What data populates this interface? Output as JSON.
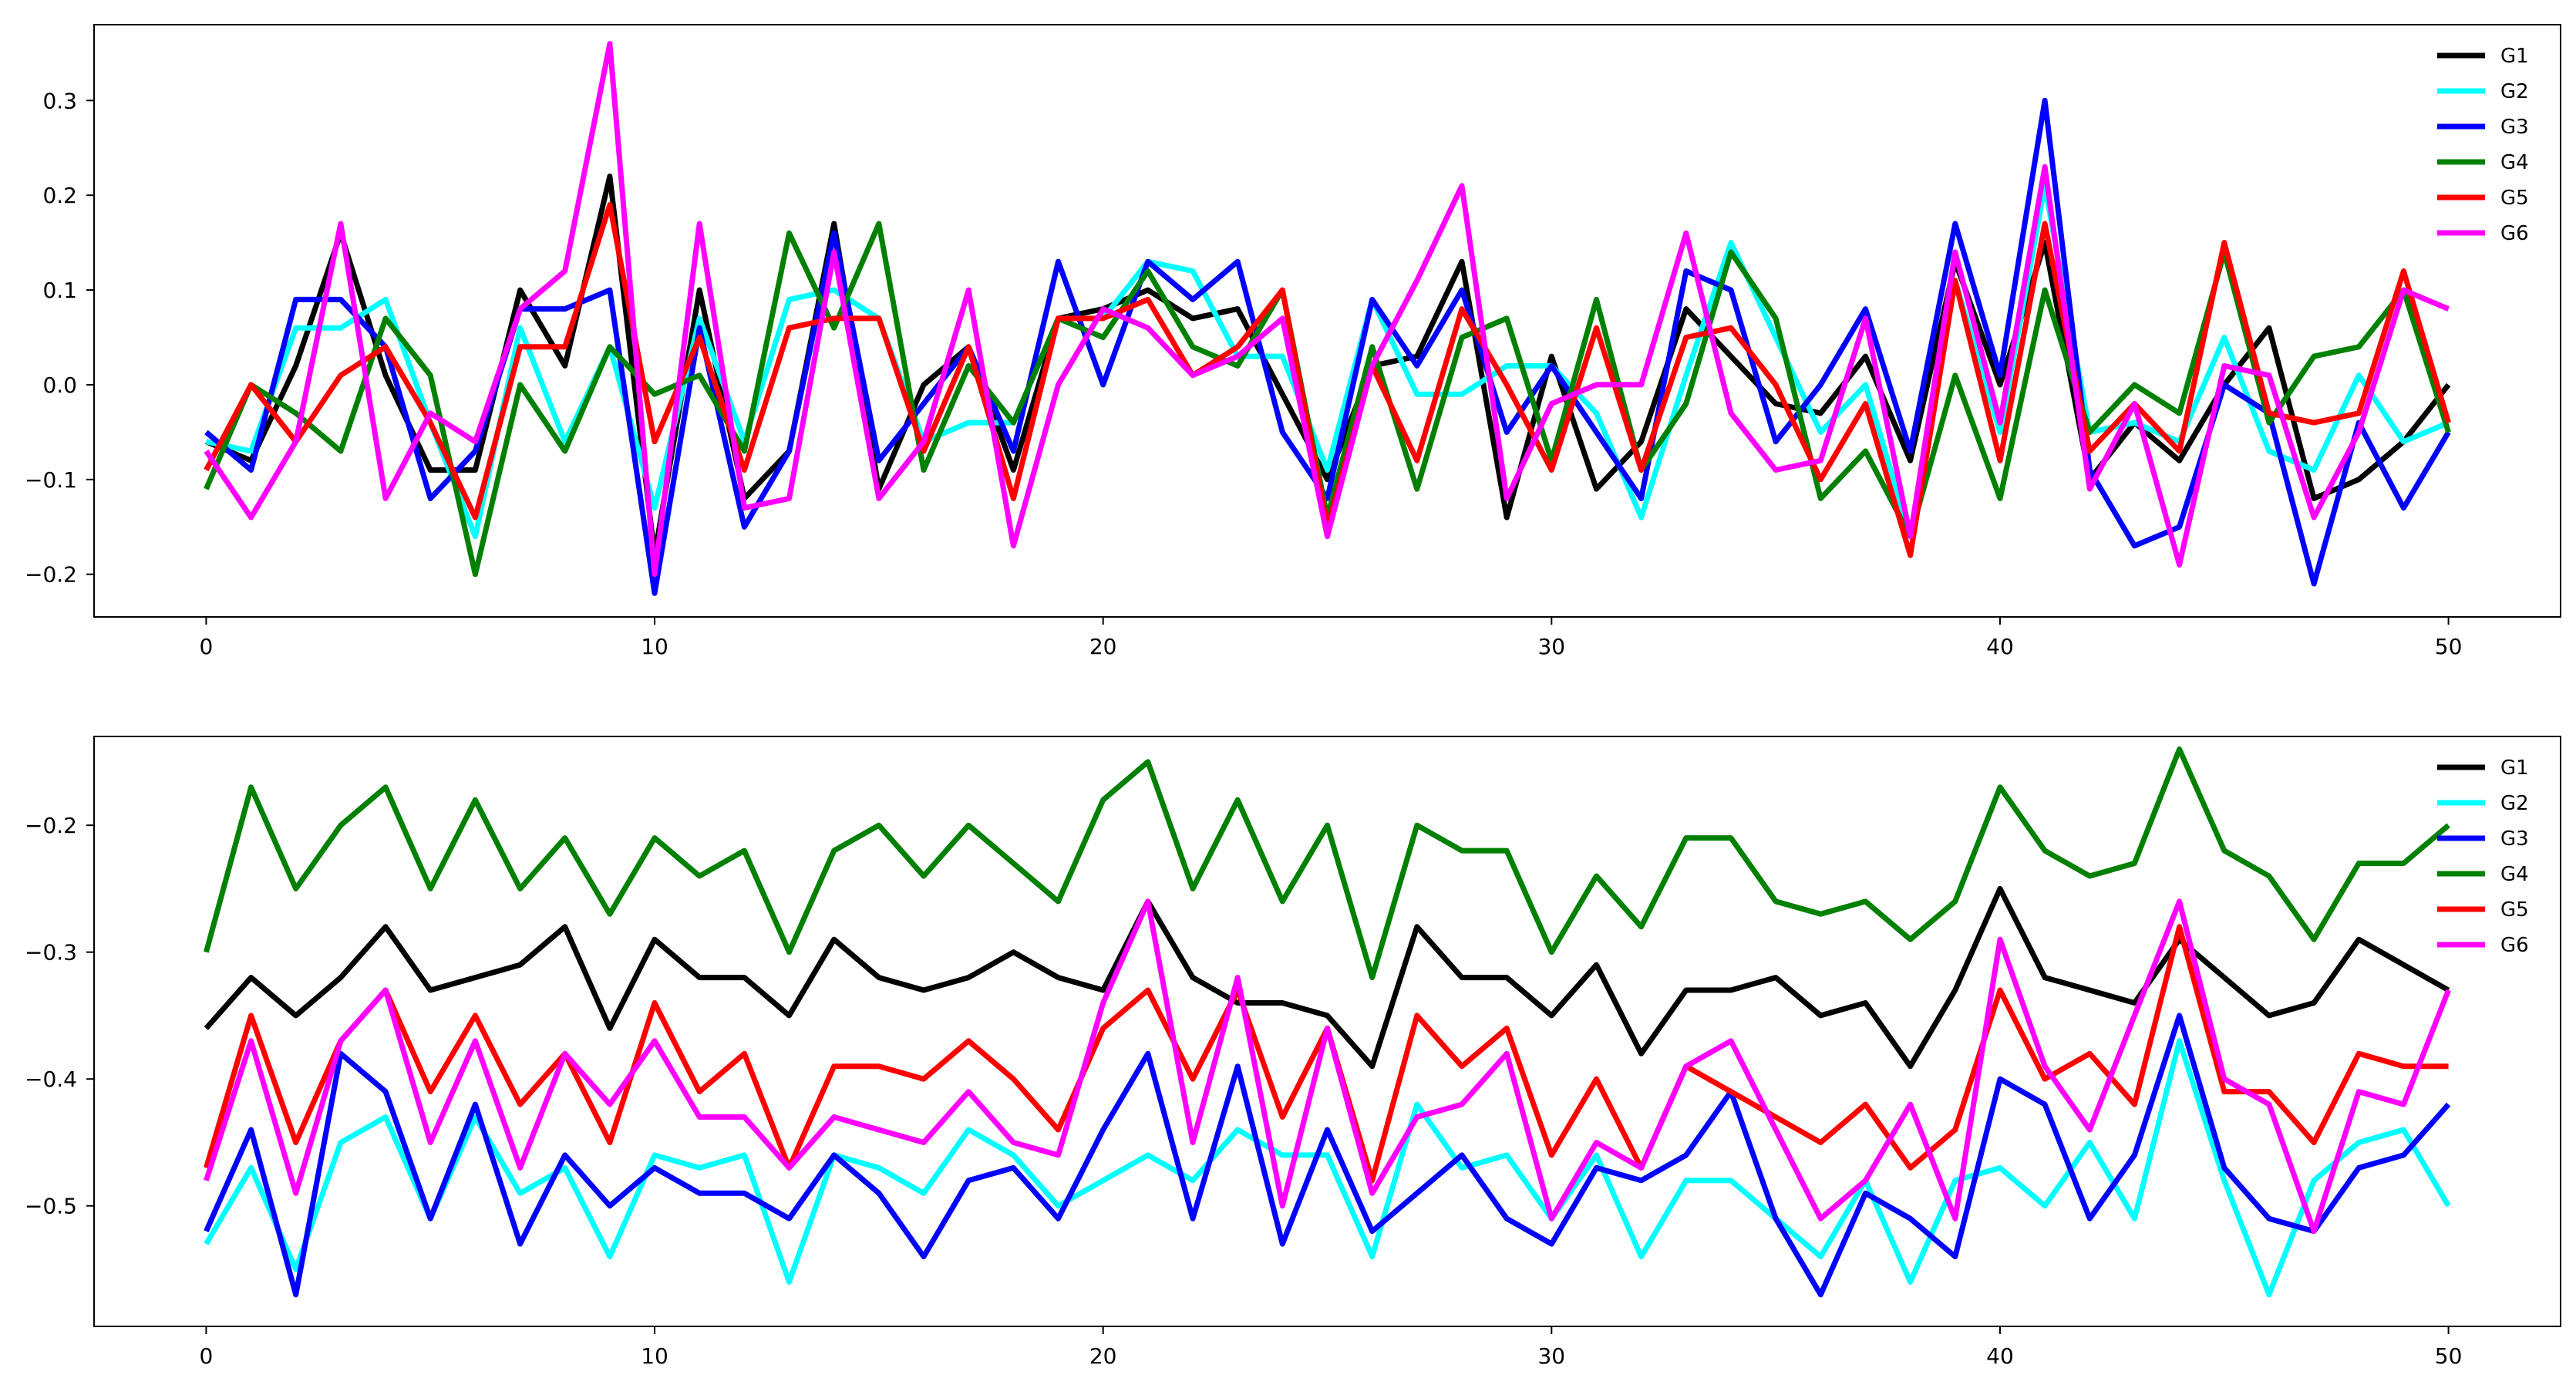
{
  "chart_data": [
    {
      "type": "line",
      "title": "",
      "xlabel": "",
      "ylabel": "",
      "xlim": [
        -2.5,
        52.5
      ],
      "ylim": [
        -0.245,
        0.38
      ],
      "xticks": [
        0,
        10,
        20,
        30,
        40,
        50
      ],
      "yticks": [
        -0.2,
        -0.1,
        0.0,
        0.1,
        0.2,
        0.3
      ],
      "ytick_labels": [
        "−0.2",
        "−0.1",
        "0.0",
        "0.1",
        "0.2",
        "0.3"
      ],
      "grid": false,
      "legend": "top-right",
      "x": [
        0,
        1,
        2,
        3,
        4,
        5,
        6,
        7,
        8,
        9,
        10,
        11,
        12,
        13,
        14,
        15,
        16,
        17,
        18,
        19,
        20,
        21,
        22,
        23,
        24,
        25,
        26,
        27,
        28,
        29,
        30,
        31,
        32,
        33,
        34,
        35,
        36,
        37,
        38,
        39,
        40,
        41,
        42,
        43,
        44,
        45,
        46,
        47,
        48,
        49,
        50
      ],
      "series": [
        {
          "name": "G1",
          "color": "#000000",
          "values": [
            -0.06,
            -0.08,
            0.02,
            0.16,
            0.01,
            -0.09,
            -0.09,
            0.1,
            0.02,
            0.22,
            -0.18,
            0.1,
            -0.12,
            -0.07,
            0.17,
            -0.11,
            0.0,
            0.04,
            -0.09,
            0.07,
            0.08,
            0.1,
            0.07,
            0.08,
            -0.01,
            -0.1,
            0.02,
            0.03,
            0.13,
            -0.14,
            0.03,
            -0.11,
            -0.06,
            0.08,
            0.03,
            -0.02,
            -0.03,
            0.03,
            -0.08,
            0.13,
            0.0,
            0.15,
            -0.1,
            -0.04,
            -0.08,
            0.0,
            0.06,
            -0.12,
            -0.1,
            -0.06,
            0.0
          ]
        },
        {
          "name": "G2",
          "color": "#00ffff",
          "values": [
            -0.06,
            -0.07,
            0.06,
            0.06,
            0.09,
            -0.04,
            -0.16,
            0.06,
            -0.06,
            0.04,
            -0.13,
            0.07,
            -0.06,
            0.09,
            0.1,
            0.07,
            -0.06,
            -0.04,
            -0.04,
            0.07,
            0.07,
            0.13,
            0.12,
            0.03,
            0.03,
            -0.09,
            0.09,
            -0.01,
            -0.01,
            0.02,
            0.02,
            -0.03,
            -0.14,
            0.01,
            0.15,
            0.05,
            -0.05,
            0.0,
            -0.16,
            0.11,
            -0.05,
            0.21,
            -0.05,
            -0.04,
            -0.06,
            0.05,
            -0.07,
            -0.09,
            0.01,
            -0.06,
            -0.04
          ]
        },
        {
          "name": "G3",
          "color": "#0000ff",
          "values": [
            -0.05,
            -0.09,
            0.09,
            0.09,
            0.04,
            -0.12,
            -0.07,
            0.08,
            0.08,
            0.1,
            -0.22,
            0.06,
            -0.15,
            -0.07,
            0.16,
            -0.08,
            -0.02,
            0.04,
            -0.07,
            0.13,
            0.0,
            0.13,
            0.09,
            0.13,
            -0.05,
            -0.12,
            0.09,
            0.02,
            0.1,
            -0.05,
            0.02,
            -0.05,
            -0.12,
            0.12,
            0.1,
            -0.06,
            0.0,
            0.08,
            -0.07,
            0.17,
            0.01,
            0.3,
            -0.09,
            -0.17,
            -0.15,
            0.0,
            -0.03,
            -0.21,
            -0.04,
            -0.13,
            -0.05
          ]
        },
        {
          "name": "G4",
          "color": "#008000",
          "values": [
            -0.11,
            0.0,
            -0.03,
            -0.07,
            0.07,
            0.01,
            -0.2,
            0.0,
            -0.07,
            0.04,
            -0.01,
            0.01,
            -0.07,
            0.16,
            0.06,
            0.17,
            -0.09,
            0.02,
            -0.04,
            0.07,
            0.05,
            0.12,
            0.04,
            0.02,
            0.1,
            -0.14,
            0.04,
            -0.11,
            0.05,
            0.07,
            -0.08,
            0.09,
            -0.09,
            -0.02,
            0.14,
            0.07,
            -0.12,
            -0.07,
            -0.16,
            0.01,
            -0.12,
            0.1,
            -0.05,
            0.0,
            -0.03,
            0.14,
            -0.04,
            0.03,
            0.04,
            0.1,
            -0.05
          ]
        },
        {
          "name": "G5",
          "color": "#ff0000",
          "values": [
            -0.09,
            0.0,
            -0.06,
            0.01,
            0.04,
            -0.04,
            -0.14,
            0.04,
            0.04,
            0.19,
            -0.06,
            0.05,
            -0.09,
            0.06,
            0.07,
            0.07,
            -0.07,
            0.04,
            -0.12,
            0.07,
            0.07,
            0.09,
            0.01,
            0.04,
            0.1,
            -0.15,
            0.02,
            -0.08,
            0.08,
            0.0,
            -0.09,
            0.06,
            -0.09,
            0.05,
            0.06,
            0.0,
            -0.1,
            -0.02,
            -0.18,
            0.11,
            -0.08,
            0.17,
            -0.07,
            -0.02,
            -0.07,
            0.15,
            -0.03,
            -0.04,
            -0.03,
            0.12,
            -0.04
          ]
        },
        {
          "name": "G6",
          "color": "#ff00ff",
          "values": [
            -0.07,
            -0.14,
            -0.06,
            0.17,
            -0.12,
            -0.03,
            -0.06,
            0.08,
            0.12,
            0.36,
            -0.2,
            0.17,
            -0.13,
            -0.12,
            0.14,
            -0.12,
            -0.06,
            0.1,
            -0.17,
            0.0,
            0.08,
            0.06,
            0.01,
            0.03,
            0.07,
            -0.16,
            0.02,
            0.11,
            0.21,
            -0.12,
            -0.02,
            0.0,
            0.0,
            0.16,
            -0.03,
            -0.09,
            -0.08,
            0.07,
            -0.16,
            0.14,
            -0.04,
            0.23,
            -0.11,
            -0.02,
            -0.19,
            0.02,
            0.01,
            -0.14,
            -0.05,
            0.1,
            0.08
          ]
        }
      ]
    },
    {
      "type": "line",
      "title": "",
      "xlabel": "",
      "ylabel": "",
      "xlim": [
        -2.5,
        52.5
      ],
      "ylim": [
        -0.595,
        -0.13
      ],
      "xticks": [
        0,
        10,
        20,
        30,
        40,
        50
      ],
      "yticks": [
        -0.5,
        -0.4,
        -0.3,
        -0.2
      ],
      "ytick_labels": [
        "−0.5",
        "−0.4",
        "−0.3",
        "−0.2"
      ],
      "grid": false,
      "legend": "top-right",
      "x": [
        0,
        1,
        2,
        3,
        4,
        5,
        6,
        7,
        8,
        9,
        10,
        11,
        12,
        13,
        14,
        15,
        16,
        17,
        18,
        19,
        20,
        21,
        22,
        23,
        24,
        25,
        26,
        27,
        28,
        29,
        30,
        31,
        32,
        33,
        34,
        35,
        36,
        37,
        38,
        39,
        40,
        41,
        42,
        43,
        44,
        45,
        46,
        47,
        48,
        49,
        50
      ],
      "series": [
        {
          "name": "G1",
          "color": "#000000",
          "values": [
            -0.36,
            -0.32,
            -0.35,
            -0.32,
            -0.28,
            -0.33,
            -0.32,
            -0.31,
            -0.28,
            -0.36,
            -0.29,
            -0.32,
            -0.32,
            -0.35,
            -0.29,
            -0.32,
            -0.33,
            -0.32,
            -0.3,
            -0.32,
            -0.33,
            -0.26,
            -0.32,
            -0.34,
            -0.34,
            -0.35,
            -0.39,
            -0.28,
            -0.32,
            -0.32,
            -0.35,
            -0.31,
            -0.38,
            -0.33,
            -0.33,
            -0.32,
            -0.35,
            -0.34,
            -0.39,
            -0.33,
            -0.25,
            -0.32,
            -0.33,
            -0.34,
            -0.29,
            -0.32,
            -0.35,
            -0.34,
            -0.29,
            -0.31,
            -0.33
          ]
        },
        {
          "name": "G2",
          "color": "#00ffff",
          "values": [
            -0.53,
            -0.47,
            -0.55,
            -0.45,
            -0.43,
            -0.51,
            -0.43,
            -0.49,
            -0.47,
            -0.54,
            -0.46,
            -0.47,
            -0.46,
            -0.56,
            -0.46,
            -0.47,
            -0.49,
            -0.44,
            -0.46,
            -0.5,
            -0.48,
            -0.46,
            -0.48,
            -0.44,
            -0.46,
            -0.46,
            -0.54,
            -0.42,
            -0.47,
            -0.46,
            -0.51,
            -0.46,
            -0.54,
            -0.48,
            -0.48,
            -0.51,
            -0.54,
            -0.48,
            -0.56,
            -0.48,
            -0.47,
            -0.5,
            -0.45,
            -0.51,
            -0.37,
            -0.48,
            -0.57,
            -0.48,
            -0.45,
            -0.44,
            -0.5
          ]
        },
        {
          "name": "G3",
          "color": "#0000ff",
          "values": [
            -0.52,
            -0.44,
            -0.57,
            -0.38,
            -0.41,
            -0.51,
            -0.42,
            -0.53,
            -0.46,
            -0.5,
            -0.47,
            -0.49,
            -0.49,
            -0.51,
            -0.46,
            -0.49,
            -0.54,
            -0.48,
            -0.47,
            -0.51,
            -0.44,
            -0.38,
            -0.51,
            -0.39,
            -0.53,
            -0.44,
            -0.52,
            -0.49,
            -0.46,
            -0.51,
            -0.53,
            -0.47,
            -0.48,
            -0.46,
            -0.41,
            -0.51,
            -0.57,
            -0.49,
            -0.51,
            -0.54,
            -0.4,
            -0.42,
            -0.51,
            -0.46,
            -0.35,
            -0.47,
            -0.51,
            -0.52,
            -0.47,
            -0.46,
            -0.42
          ]
        },
        {
          "name": "G4",
          "color": "#008000",
          "values": [
            -0.3,
            -0.17,
            -0.25,
            -0.2,
            -0.17,
            -0.25,
            -0.18,
            -0.25,
            -0.21,
            -0.27,
            -0.21,
            -0.24,
            -0.22,
            -0.3,
            -0.22,
            -0.2,
            -0.24,
            -0.2,
            -0.23,
            -0.26,
            -0.18,
            -0.15,
            -0.25,
            -0.18,
            -0.26,
            -0.2,
            -0.32,
            -0.2,
            -0.22,
            -0.22,
            -0.3,
            -0.24,
            -0.28,
            -0.21,
            -0.21,
            -0.26,
            -0.27,
            -0.26,
            -0.29,
            -0.26,
            -0.17,
            -0.22,
            -0.24,
            -0.23,
            -0.14,
            -0.22,
            -0.24,
            -0.29,
            -0.23,
            -0.23,
            -0.2
          ]
        },
        {
          "name": "G5",
          "color": "#ff0000",
          "values": [
            -0.47,
            -0.35,
            -0.45,
            -0.37,
            -0.33,
            -0.41,
            -0.35,
            -0.42,
            -0.38,
            -0.45,
            -0.34,
            -0.41,
            -0.38,
            -0.47,
            -0.39,
            -0.39,
            -0.4,
            -0.37,
            -0.4,
            -0.44,
            -0.36,
            -0.33,
            -0.4,
            -0.33,
            -0.43,
            -0.36,
            -0.48,
            -0.35,
            -0.39,
            -0.36,
            -0.46,
            -0.4,
            -0.47,
            -0.39,
            -0.41,
            -0.43,
            -0.45,
            -0.42,
            -0.47,
            -0.44,
            -0.33,
            -0.4,
            -0.38,
            -0.42,
            -0.28,
            -0.41,
            -0.41,
            -0.45,
            -0.38,
            -0.39,
            -0.39
          ]
        },
        {
          "name": "G6",
          "color": "#ff00ff",
          "values": [
            -0.48,
            -0.37,
            -0.49,
            -0.37,
            -0.33,
            -0.45,
            -0.37,
            -0.47,
            -0.38,
            -0.42,
            -0.37,
            -0.43,
            -0.43,
            -0.47,
            -0.43,
            -0.44,
            -0.45,
            -0.41,
            -0.45,
            -0.46,
            -0.34,
            -0.26,
            -0.45,
            -0.32,
            -0.5,
            -0.36,
            -0.49,
            -0.43,
            -0.42,
            -0.38,
            -0.51,
            -0.45,
            -0.47,
            -0.39,
            -0.37,
            -0.44,
            -0.51,
            -0.48,
            -0.42,
            -0.51,
            -0.29,
            -0.39,
            -0.44,
            -0.35,
            -0.26,
            -0.4,
            -0.42,
            -0.52,
            -0.41,
            -0.42,
            -0.33
          ]
        }
      ]
    }
  ]
}
